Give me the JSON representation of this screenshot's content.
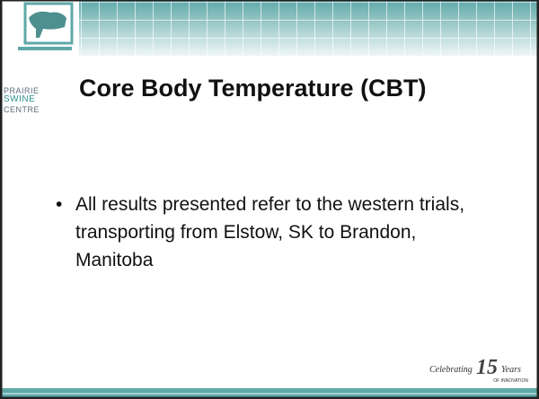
{
  "logo": {
    "line1": "PRAIRIE",
    "line2": "SWINE",
    "line3": "CENTRE"
  },
  "title": "Core Body Temperature (CBT)",
  "bullets": [
    "All results presented refer to the western trials, transporting from Elstow, SK to Brandon, Manitoba"
  ],
  "footer": {
    "prefix": "Celebrating",
    "number": "15",
    "suffix": "Years",
    "tagline": "OF INNOVATION"
  }
}
